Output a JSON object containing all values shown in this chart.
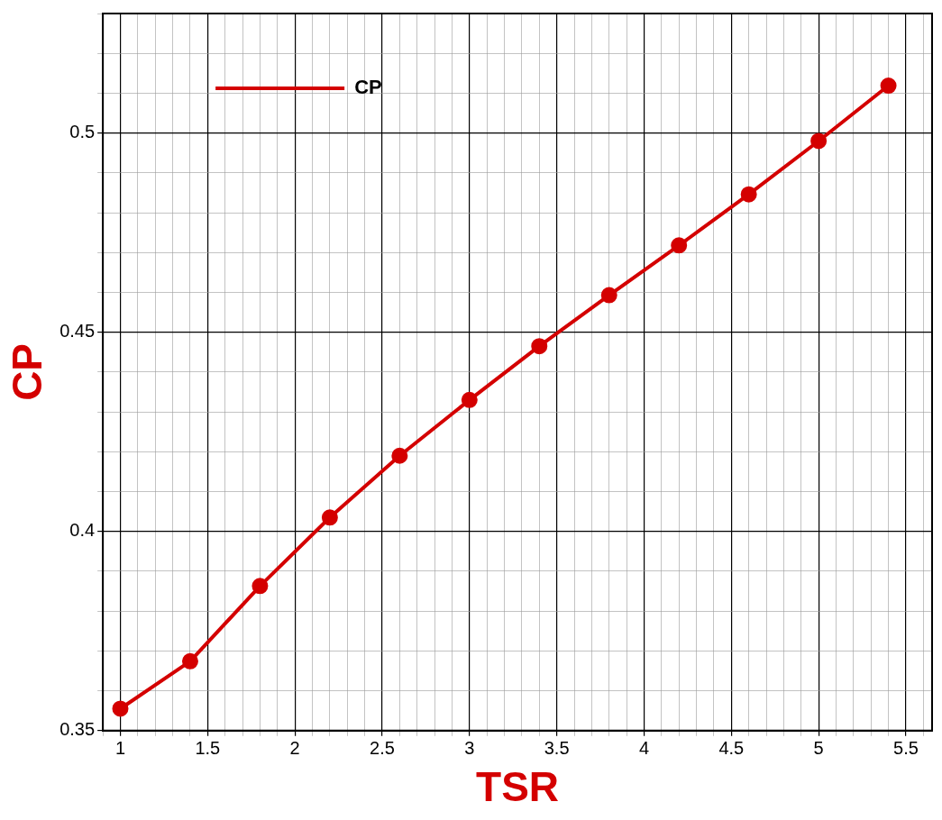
{
  "chart_data": {
    "type": "line",
    "xlabel": "TSR",
    "ylabel": "CP",
    "x": [
      1,
      1.4,
      1.8,
      2.2,
      2.6,
      3.0,
      3.4,
      3.8,
      4.2,
      4.6,
      5.0,
      5.4
    ],
    "series": [
      {
        "name": "CP",
        "color": "#d40000",
        "values": [
          0.3555,
          0.3674,
          0.3863,
          0.4035,
          0.419,
          0.433,
          0.4465,
          0.4593,
          0.4718,
          0.4846,
          0.498,
          0.5119
        ]
      }
    ],
    "xlim": [
      0.9,
      5.65
    ],
    "ylim": [
      0.35,
      0.53
    ],
    "xticks": [
      {
        "value": 0.9,
        "label": null
      },
      1,
      {
        "value": 1.1,
        "label": null
      },
      {
        "value": 1.2,
        "label": null
      },
      {
        "value": 1.3,
        "label": null
      },
      {
        "value": 1.4,
        "label": null
      },
      1.5,
      {
        "value": 1.6,
        "label": null
      },
      {
        "value": 1.7,
        "label": null
      },
      {
        "value": 1.8,
        "label": null
      },
      {
        "value": 1.9,
        "label": null
      },
      2,
      {
        "value": 2.1,
        "label": null
      },
      {
        "value": 2.2,
        "label": null
      },
      {
        "value": 2.3,
        "label": null
      },
      {
        "value": 2.4,
        "label": null
      },
      2.5,
      {
        "value": 2.6,
        "label": null
      },
      {
        "value": 2.7,
        "label": null
      },
      {
        "value": 2.8,
        "label": null
      },
      {
        "value": 2.9,
        "label": null
      },
      3,
      {
        "value": 3.1,
        "label": null
      },
      {
        "value": 3.2,
        "label": null
      },
      {
        "value": 3.3,
        "label": null
      },
      {
        "value": 3.4,
        "label": null
      },
      3.5,
      {
        "value": 3.6,
        "label": null
      },
      {
        "value": 3.7,
        "label": null
      },
      {
        "value": 3.8,
        "label": null
      },
      {
        "value": 3.9,
        "label": null
      },
      4,
      {
        "value": 4.1,
        "label": null
      },
      {
        "value": 4.2,
        "label": null
      },
      {
        "value": 4.3,
        "label": null
      },
      {
        "value": 4.4,
        "label": null
      },
      4.5,
      {
        "value": 4.6,
        "label": null
      },
      {
        "value": 4.7,
        "label": null
      },
      {
        "value": 4.8,
        "label": null
      },
      {
        "value": 4.9,
        "label": null
      },
      5,
      {
        "value": 5.1,
        "label": null
      },
      {
        "value": 5.2,
        "label": null
      },
      {
        "value": 5.3,
        "label": null
      },
      {
        "value": 5.4,
        "label": null
      },
      5.5,
      {
        "value": 5.6,
        "label": null
      }
    ],
    "yticks": [
      0.35,
      {
        "value": 0.36,
        "label": null
      },
      {
        "value": 0.37,
        "label": null
      },
      {
        "value": 0.38,
        "label": null
      },
      {
        "value": 0.39,
        "label": null
      },
      0.4,
      {
        "value": 0.41,
        "label": null
      },
      {
        "value": 0.42,
        "label": null
      },
      {
        "value": 0.43,
        "label": null
      },
      {
        "value": 0.44,
        "label": null
      },
      0.45,
      {
        "value": 0.46,
        "label": null
      },
      {
        "value": 0.47,
        "label": null
      },
      {
        "value": 0.48,
        "label": null
      },
      {
        "value": 0.49,
        "label": null
      },
      0.5,
      {
        "value": 0.51,
        "label": null
      },
      {
        "value": 0.52,
        "label": null
      },
      {
        "value": 0.53,
        "label": null
      }
    ],
    "grid": true,
    "legend": "top left",
    "marker": "circle",
    "line_style": "solid"
  }
}
